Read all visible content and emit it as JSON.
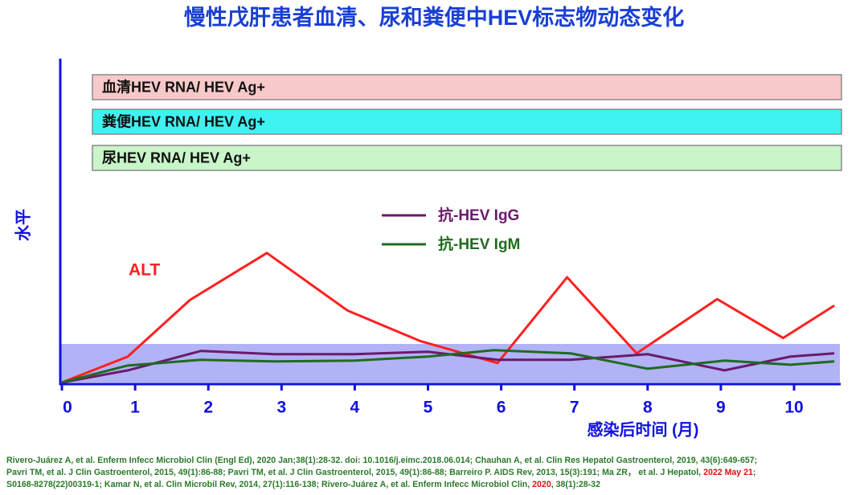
{
  "chart_data": {
    "type": "line",
    "title": "慢性戊肝患者血清、尿和粪便中HEV标志物动态变化",
    "x_label": "感染后时间 (月)",
    "y_label": "水平",
    "xlim": [
      0,
      10.6
    ],
    "xticks": [
      0,
      1,
      2,
      3,
      4,
      5,
      6,
      7,
      8,
      9,
      10
    ],
    "ylim": [
      0,
      100
    ],
    "annotations": [
      {
        "text": "血清HEV RNA/ HEV Ag+",
        "color": "#f8c9c9"
      },
      {
        "text": "粪便HEV RNA/ HEV Ag+",
        "color": "#3ff2f2"
      },
      {
        "text": "尿HEV RNA/ HEV Ag+",
        "color": "#c9f5c9"
      }
    ],
    "series": [
      {
        "name": "ALT",
        "color": "#ff2020",
        "legend": false,
        "x": [
          0,
          0.9,
          1.75,
          2.8,
          3.9,
          4.9,
          5.95,
          6.9,
          7.85,
          8.95,
          9.85,
          10.55
        ],
        "values": [
          0,
          8,
          25.5,
          40,
          22.25,
          12.75,
          6,
          32.5,
          9,
          25.75,
          13.75,
          23.75
        ]
      },
      {
        "name": "抗-HEV IgG",
        "color": "#6b1a6b",
        "legend": true,
        "x": [
          0,
          0.9,
          1.9,
          2.9,
          4,
          5,
          5.95,
          6.95,
          8,
          9.05,
          9.95,
          10.55
        ],
        "values": [
          0,
          3.75,
          9.75,
          8.75,
          8.75,
          9.5,
          7,
          7,
          8.75,
          3.75,
          8,
          9
        ]
      },
      {
        "name": "抗-HEV IgM",
        "color": "#1f6b1f",
        "legend": true,
        "x": [
          0,
          0.9,
          1.9,
          2.9,
          4,
          5,
          5.9,
          6.95,
          8,
          9.05,
          9.95,
          10.55
        ],
        "values": [
          0,
          5.25,
          7,
          6.5,
          6.75,
          8,
          10,
          9,
          4.25,
          6.75,
          5.5,
          6.5
        ]
      }
    ],
    "footnote": [
      [
        {
          "text": "Rivero-Juárez A, et al. Enferm Infecc Microbiol Clin (Engl Ed), 2020 Jan;38(1):28-32. doi: 10.1016/j.eimc.2018.06.014; Chauhan A, et al. Clin Res Hepatol Gastroenterol, 2019, 43(6):649-657;"
        }
      ],
      [
        {
          "text": "Pavri TM, et al. J Clin Gastroenterol, 2015, 49(1):86-88; Pavri TM, et al. J Clin Gastroenterol, 2015, 49(1):86-88; Barreiro P.  AIDS Rev, 2013, 15(3):191; Ma ZR， et al. J Hepatol, "
        },
        {
          "text": "2022 May 21",
          "color": "#e01010"
        },
        {
          "text": ";"
        }
      ],
      [
        {
          "text": "S0168-8278(22)00319-1; Kamar N, et al. Clin Microbil Rev, 2014, 27(1):116-138; Rivero-Juárez A, et al. Enferm Infecc Microbiol Clin, "
        },
        {
          "text": "2020",
          "color": "#e01010"
        },
        {
          "text": ", 38(1):28-32"
        }
      ]
    ]
  }
}
